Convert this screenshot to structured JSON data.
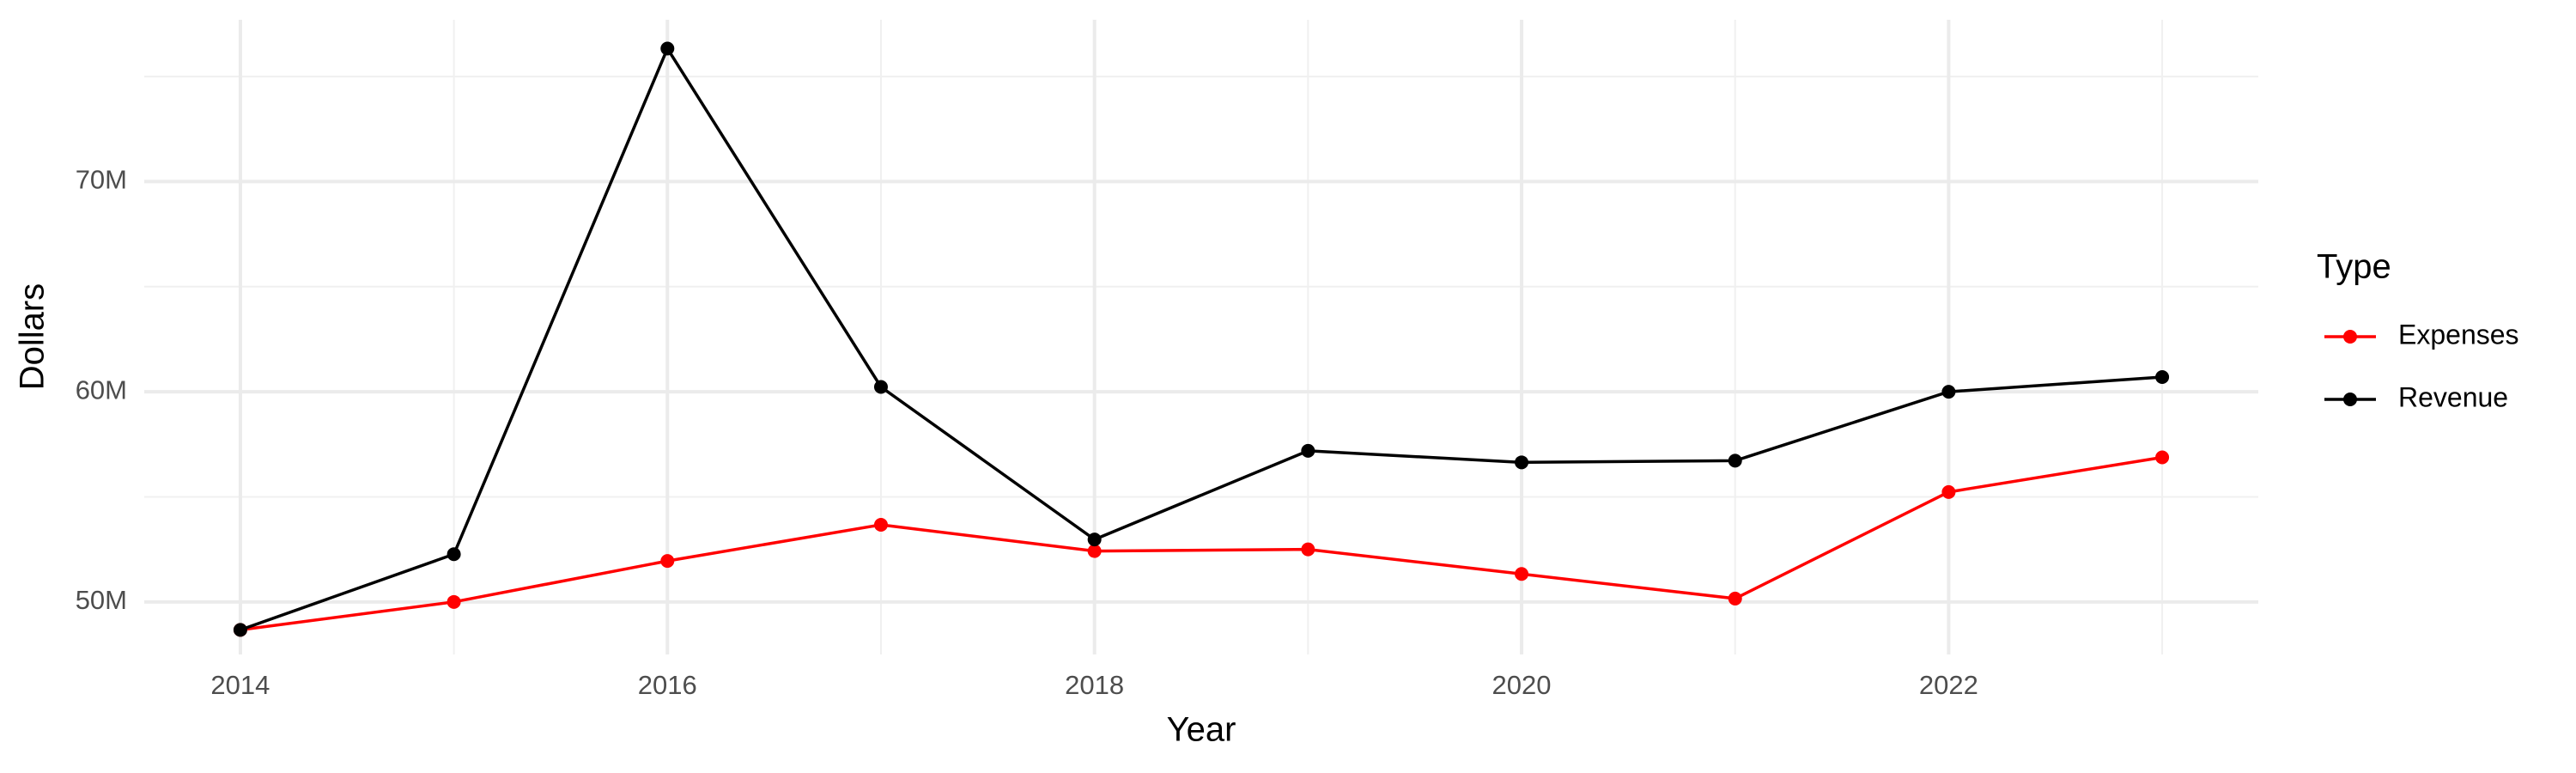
{
  "chart_data": {
    "type": "line",
    "x_label": "Year",
    "y_label": "Dollars",
    "legend_title": "Type",
    "x": [
      2014,
      2015,
      2016,
      2017,
      2018,
      2019,
      2020,
      2021,
      2022,
      2023
    ],
    "series": [
      {
        "name": "Expenses",
        "color": "#ff0000",
        "values": [
          48670000,
          50000000,
          51950000,
          53670000,
          52420000,
          52500000,
          51330000,
          50160000,
          55230000,
          56880000
        ]
      },
      {
        "name": "Revenue",
        "color": "#000000",
        "values": [
          48670000,
          52270000,
          76330000,
          60230000,
          52970000,
          57190000,
          56640000,
          56720000,
          60000000,
          60700000
        ]
      }
    ],
    "xlim": [
      2013.55,
      2023.45
    ],
    "ylim": [
      47500000,
      77700000
    ],
    "xticks": [
      2014,
      2016,
      2018,
      2020,
      2022
    ],
    "yticks": [
      {
        "value": 50000000,
        "label": "50M"
      },
      {
        "value": 60000000,
        "label": "60M"
      },
      {
        "value": 70000000,
        "label": "70M"
      }
    ],
    "x_minor_grid": [
      2015,
      2017,
      2019,
      2021,
      2023
    ],
    "y_minor_grid": [
      55000000,
      65000000,
      75000000
    ],
    "grid": true,
    "legend": "right"
  }
}
